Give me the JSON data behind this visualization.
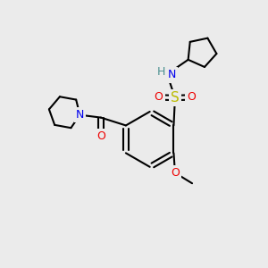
{
  "background_color": "#ebebeb",
  "atom_colors": {
    "C": "#000000",
    "N": "#0000ee",
    "O": "#ee0000",
    "S": "#bbbb00",
    "H": "#4a9090"
  },
  "bond_color": "#000000",
  "figsize": [
    3.0,
    3.0
  ],
  "dpi": 100,
  "lw": 1.5
}
